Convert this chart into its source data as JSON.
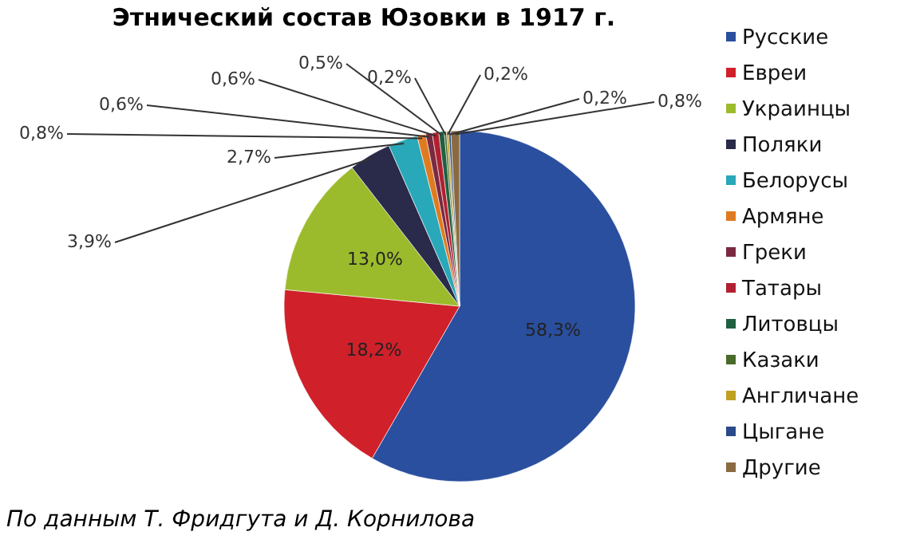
{
  "chart_data": {
    "type": "pie",
    "title": "Этнический состав Юзовки в 1917 г.",
    "categories": [
      "Русские",
      "Евреи",
      "Украинцы",
      "Поляки",
      "Белорусы",
      "Армяне",
      "Греки",
      "Татары",
      "Литовцы",
      "Казаки",
      "Англичане",
      "Цыгане",
      "Другие"
    ],
    "values": [
      58.3,
      18.2,
      13.0,
      3.9,
      2.7,
      0.8,
      0.6,
      0.6,
      0.5,
      0.2,
      0.2,
      0.2,
      0.8
    ],
    "value_labels": [
      "58,3%",
      "18,2%",
      "13,0%",
      "3,9%",
      "2,7%",
      "0,8%",
      "0,6%",
      "0,6%",
      "0,5%",
      "0,2%",
      "0,2%",
      "0,2%",
      "0,8%"
    ],
    "colors": [
      "#2a4f9e",
      "#d0202a",
      "#9cbb2c",
      "#2a2a4a",
      "#28a8b8",
      "#e07a20",
      "#7a2a40",
      "#b02030",
      "#206040",
      "#4a6a2a",
      "#c0a020",
      "#2a4a8a",
      "#8a6a40"
    ],
    "legend": "right",
    "annotations": [
      "По данным Т. Фридгута и Д. Корнилова"
    ]
  }
}
